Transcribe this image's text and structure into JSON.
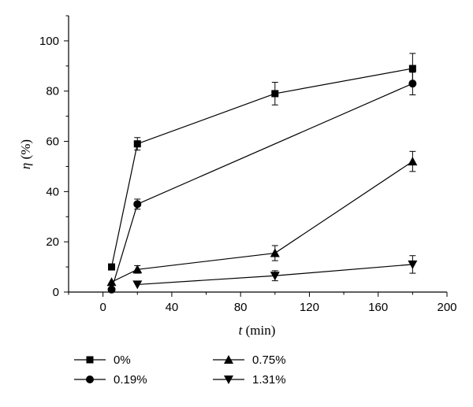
{
  "chart_data": {
    "type": "line",
    "xlabel_var": "t",
    "xlabel_unit": " (min)",
    "ylabel_var": "η",
    "ylabel_unit": " (%)",
    "xlim": [
      -20,
      200
    ],
    "ylim": [
      0,
      110
    ],
    "xticks": [
      0,
      40,
      80,
      120,
      160,
      200
    ],
    "yticks": [
      0,
      20,
      40,
      60,
      80,
      100
    ],
    "grid": false,
    "legend_position": "bottom",
    "series": [
      {
        "name": "0%",
        "marker": "square",
        "x": [
          5,
          20,
          100,
          180
        ],
        "y": [
          10,
          59,
          79,
          89
        ],
        "err": [
          0,
          2.5,
          4.5,
          6
        ]
      },
      {
        "name": "0.19%",
        "marker": "circle",
        "x": [
          5,
          20,
          180
        ],
        "y": [
          1,
          35,
          83
        ],
        "err": [
          0,
          2,
          4.5
        ]
      },
      {
        "name": "0.75%",
        "marker": "triangle-up",
        "x": [
          5,
          20,
          100,
          180
        ],
        "y": [
          4,
          9,
          15.5,
          52
        ],
        "err": [
          0,
          1.5,
          3,
          4
        ]
      },
      {
        "name": "1.31%",
        "marker": "triangle-down",
        "x": [
          20,
          100,
          180
        ],
        "y": [
          3,
          6.5,
          11
        ],
        "err": [
          0,
          2,
          3.5
        ]
      }
    ]
  }
}
